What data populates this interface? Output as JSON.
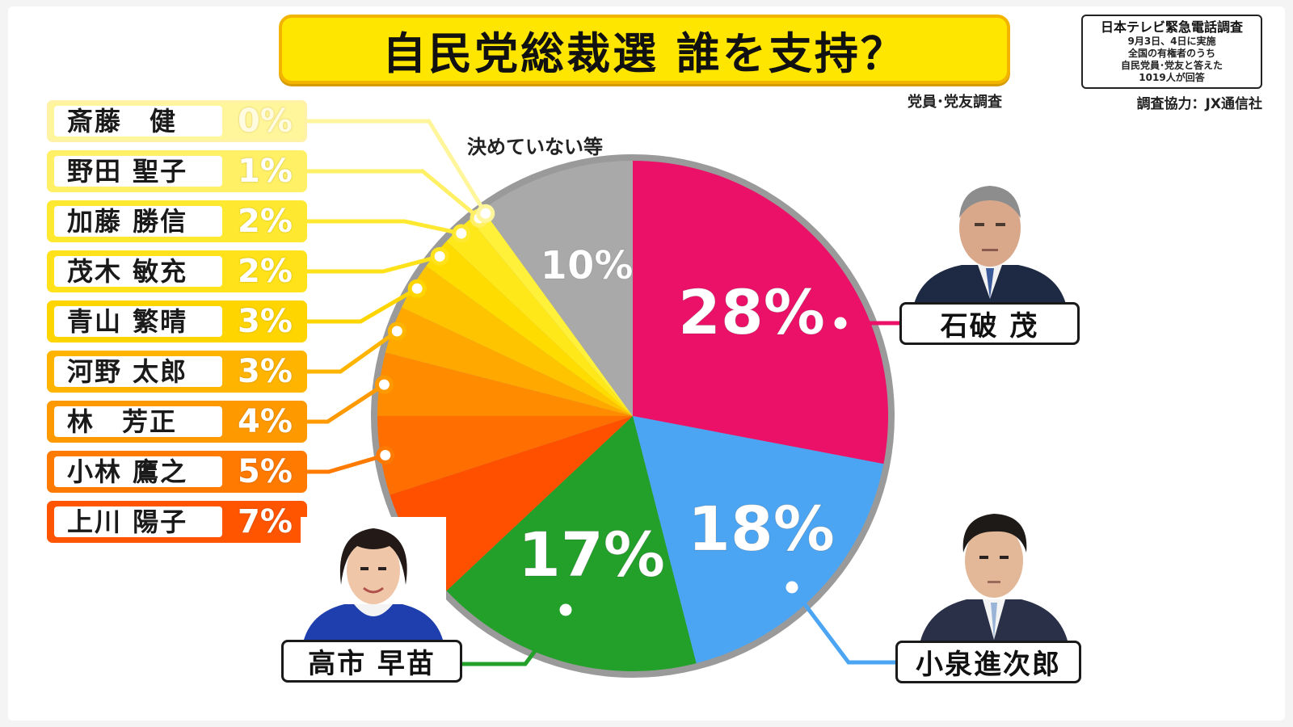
{
  "title": "自民党総裁選 誰を支持？",
  "subtitle": "党員･党友調査",
  "source": {
    "heading": "日本テレビ緊急電話調査",
    "lines": [
      "9月3日、4日に実施",
      "全国の有権者のうち",
      "自民党員･党友と答えた",
      "1019人が回答"
    ],
    "cooperation": "調査協力：JX通信社"
  },
  "chart_data": {
    "type": "pie",
    "slices": [
      {
        "label": "石破 茂",
        "value": 28,
        "display": "28%",
        "color": "#ec1168"
      },
      {
        "label": "小泉進次郎",
        "value": 18,
        "display": "18%",
        "color": "#4ba5f2"
      },
      {
        "label": "高市 早苗",
        "value": 17,
        "display": "17%",
        "color": "#22a02a"
      },
      {
        "label": "上川 陽子",
        "value": 7,
        "display": "7%",
        "color": "#ff5000"
      },
      {
        "label": "小林 鷹之",
        "value": 5,
        "display": "5%",
        "color": "#ff6e00"
      },
      {
        "label": "林　芳正",
        "value": 4,
        "display": "4%",
        "color": "#ff8c00"
      },
      {
        "label": "河野 太郎",
        "value": 3,
        "display": "3%",
        "color": "#ffa800"
      },
      {
        "label": "青山 繁晴",
        "value": 3,
        "display": "3%",
        "color": "#ffc400"
      },
      {
        "label": "茂木 敏充",
        "value": 2,
        "display": "2%",
        "color": "#ffdc00"
      },
      {
        "label": "加藤 勝信",
        "value": 2,
        "display": "2%",
        "color": "#ffe81a"
      },
      {
        "label": "野田 聖子",
        "value": 1,
        "display": "1%",
        "color": "#fff03a"
      },
      {
        "label": "斎藤　健",
        "value": 0,
        "display": "0%",
        "color": "#fff55a"
      },
      {
        "label": "決めていない等",
        "value": 10,
        "display": "10%",
        "color": "#a9a9a9"
      }
    ]
  },
  "legend": [
    {
      "name": "斎藤　健",
      "pct": "0%",
      "bg": "#fff59a",
      "border": "#fff2a8"
    },
    {
      "name": "野田 聖子",
      "pct": "1%",
      "bg": "#fff066",
      "border": "#fff066"
    },
    {
      "name": "加藤 勝信",
      "pct": "2%",
      "bg": "#ffe930",
      "border": "#ffe930"
    },
    {
      "name": "茂木 敏充",
      "pct": "2%",
      "bg": "#ffe21a",
      "border": "#ffe21a"
    },
    {
      "name": "青山 繁晴",
      "pct": "3%",
      "bg": "#ffd500",
      "border": "#ffd500"
    },
    {
      "name": "河野 太郎",
      "pct": "3%",
      "bg": "#ffb400",
      "border": "#ffb400"
    },
    {
      "name": "林　芳正",
      "pct": "4%",
      "bg": "#ff9900",
      "border": "#ff9900"
    },
    {
      "name": "小林 鷹之",
      "pct": "5%",
      "bg": "#ff7a00",
      "border": "#ff7a00"
    },
    {
      "name": "上川 陽子",
      "pct": "7%",
      "bg": "#ff5500",
      "border": "#ff5500"
    }
  ],
  "callouts": {
    "ishiba": "石破 茂",
    "koizumi": "小泉進次郎",
    "takaichi": "高市 早苗"
  },
  "undecided_label": "決めていない等"
}
